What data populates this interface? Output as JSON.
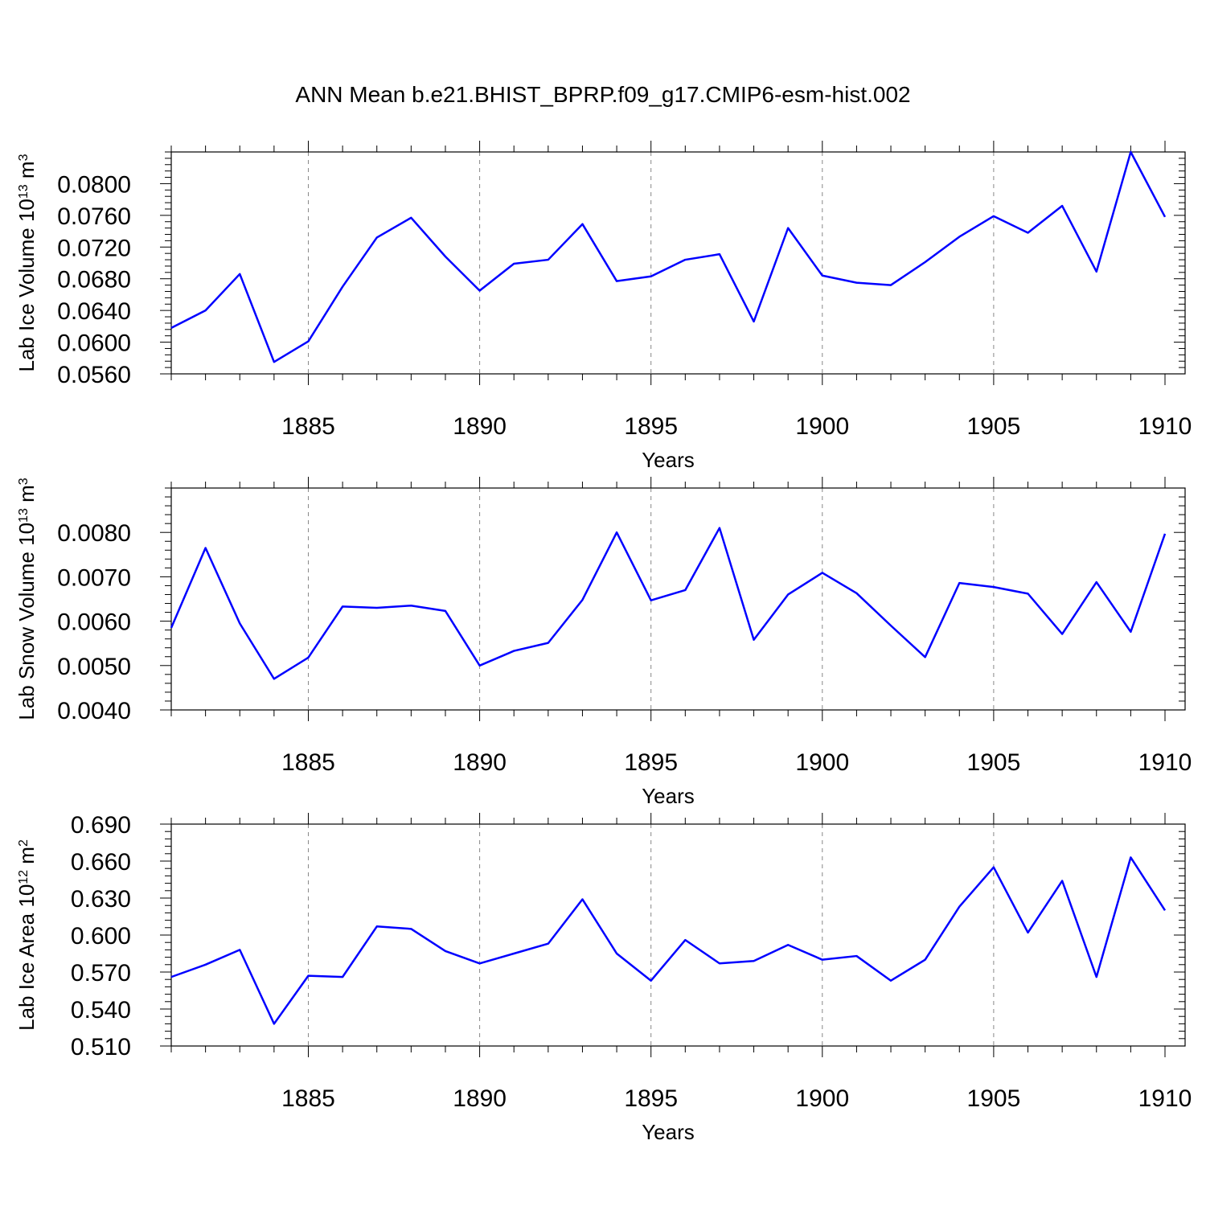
{
  "title": "ANN Mean b.e21.BHIST_BPRP.f09_g17.CMIP6-esm-hist.002",
  "colors": {
    "line": "#0000ff",
    "frame": "#000000",
    "grid": "#888888"
  },
  "chart_data": [
    {
      "type": "line",
      "xlabel": "Years",
      "ylabel": {
        "main": "Lab Ice Volume 10",
        "sup1": "13",
        "unit": " m",
        "sup2": "3"
      },
      "xlim": [
        1881,
        1910
      ],
      "ylim": [
        0.056,
        0.084
      ],
      "yticks": [
        "0.0560",
        "0.0600",
        "0.0640",
        "0.0680",
        "0.0720",
        "0.0760",
        "0.0800"
      ],
      "xticks": [
        "1885",
        "1890",
        "1895",
        "1900",
        "1905",
        "1910"
      ],
      "grid": "vertical dashed at labeled years",
      "x": [
        1881,
        1882,
        1883,
        1884,
        1885,
        1886,
        1887,
        1888,
        1889,
        1890,
        1891,
        1892,
        1893,
        1894,
        1895,
        1896,
        1897,
        1898,
        1899,
        1900,
        1901,
        1902,
        1903,
        1904,
        1905,
        1906,
        1907,
        1908,
        1909,
        1910
      ],
      "values": [
        0.0618,
        0.064,
        0.0686,
        0.0575,
        0.0601,
        0.067,
        0.0732,
        0.0757,
        0.0708,
        0.0665,
        0.0699,
        0.0704,
        0.0749,
        0.0677,
        0.0683,
        0.0704,
        0.0711,
        0.0626,
        0.0744,
        0.0684,
        0.0675,
        0.0672,
        0.0701,
        0.0733,
        0.0759,
        0.0738,
        0.0772,
        0.0689,
        0.084,
        0.0758
      ]
    },
    {
      "type": "line",
      "xlabel": "Years",
      "ylabel": {
        "main": "Lab Snow Volume 10",
        "sup1": "13",
        "unit": " m",
        "sup2": "3"
      },
      "xlim": [
        1881,
        1910
      ],
      "ylim": [
        0.004,
        0.009
      ],
      "yticks": [
        "0.0040",
        "0.0050",
        "0.0060",
        "0.0070",
        "0.0080"
      ],
      "xticks": [
        "1885",
        "1890",
        "1895",
        "1900",
        "1905",
        "1910"
      ],
      "grid": "vertical dashed at labeled years",
      "x": [
        1881,
        1882,
        1883,
        1884,
        1885,
        1886,
        1887,
        1888,
        1889,
        1890,
        1891,
        1892,
        1893,
        1894,
        1895,
        1896,
        1897,
        1898,
        1899,
        1900,
        1901,
        1902,
        1903,
        1904,
        1905,
        1906,
        1907,
        1908,
        1909,
        1910
      ],
      "values": [
        0.00585,
        0.00765,
        0.00595,
        0.0047,
        0.00518,
        0.00633,
        0.0063,
        0.00635,
        0.00623,
        0.005,
        0.00533,
        0.00551,
        0.00648,
        0.008,
        0.00647,
        0.0067,
        0.0081,
        0.00558,
        0.0066,
        0.00709,
        0.00663,
        0.0059,
        0.00519,
        0.00686,
        0.00677,
        0.00662,
        0.00571,
        0.00688,
        0.00576,
        0.00797
      ]
    },
    {
      "type": "line",
      "xlabel": "Years",
      "ylabel": {
        "main": "Lab Ice Area 10",
        "sup1": "12",
        "unit": " m",
        "sup2": "2"
      },
      "xlim": [
        1881,
        1910
      ],
      "ylim": [
        0.51,
        0.69
      ],
      "yticks": [
        "0.510",
        "0.540",
        "0.570",
        "0.600",
        "0.630",
        "0.660",
        "0.690"
      ],
      "xticks": [
        "1885",
        "1890",
        "1895",
        "1900",
        "1905",
        "1910"
      ],
      "grid": "vertical dashed at labeled years",
      "x": [
        1881,
        1882,
        1883,
        1884,
        1885,
        1886,
        1887,
        1888,
        1889,
        1890,
        1891,
        1892,
        1893,
        1894,
        1895,
        1896,
        1897,
        1898,
        1899,
        1900,
        1901,
        1902,
        1903,
        1904,
        1905,
        1906,
        1907,
        1908,
        1909,
        1910
      ],
      "values": [
        0.566,
        0.576,
        0.588,
        0.528,
        0.567,
        0.566,
        0.607,
        0.605,
        0.587,
        0.577,
        0.585,
        0.593,
        0.629,
        0.585,
        0.563,
        0.596,
        0.577,
        0.579,
        0.592,
        0.58,
        0.583,
        0.563,
        0.58,
        0.623,
        0.655,
        0.602,
        0.644,
        0.566,
        0.663,
        0.62
      ]
    }
  ]
}
